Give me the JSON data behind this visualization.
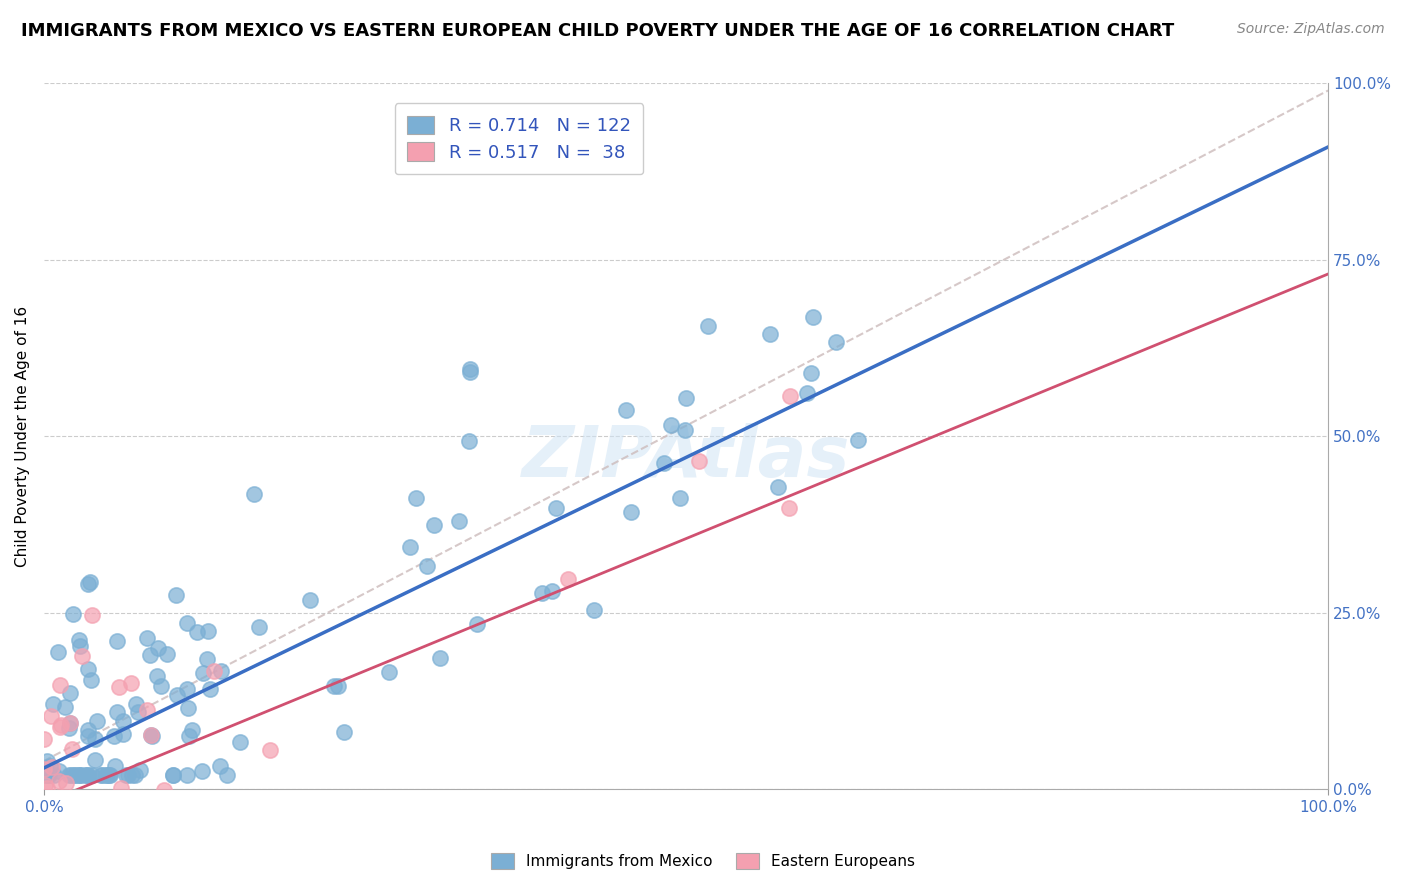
{
  "title": "IMMIGRANTS FROM MEXICO VS EASTERN EUROPEAN CHILD POVERTY UNDER THE AGE OF 16 CORRELATION CHART",
  "source": "Source: ZipAtlas.com",
  "ylabel": "Child Poverty Under the Age of 16",
  "watermark": "ZIPAtlas",
  "legend_blue_r": "R = 0.714",
  "legend_blue_n": "N = 122",
  "legend_pink_r": "R = 0.517",
  "legend_pink_n": "N =  38",
  "blue_color": "#7BAFD4",
  "pink_color": "#F4A0B0",
  "blue_line_color": "#3A6EC4",
  "pink_line_color": "#D05070",
  "dashed_line_color": "#CCAAAA",
  "blue_r": 0.714,
  "pink_r": 0.517,
  "blue_n": 122,
  "pink_n": 38,
  "xmin": 0.0,
  "xmax": 1.0,
  "ymin": 0.0,
  "ymax": 1.0,
  "right_ytick_labels": [
    "0.0%",
    "25.0%",
    "50.0%",
    "75.0%",
    "100.0%"
  ],
  "right_ytick_vals": [
    0.0,
    0.25,
    0.5,
    0.75,
    1.0
  ],
  "background_color": "#FFFFFF",
  "title_fontsize": 13,
  "watermark_fontsize": 52,
  "watermark_color": "#D0E4F5",
  "watermark_alpha": 0.55,
  "blue_line_intercept": 0.03,
  "blue_line_slope": 0.88,
  "pink_line_intercept": -0.02,
  "pink_line_slope": 0.75
}
